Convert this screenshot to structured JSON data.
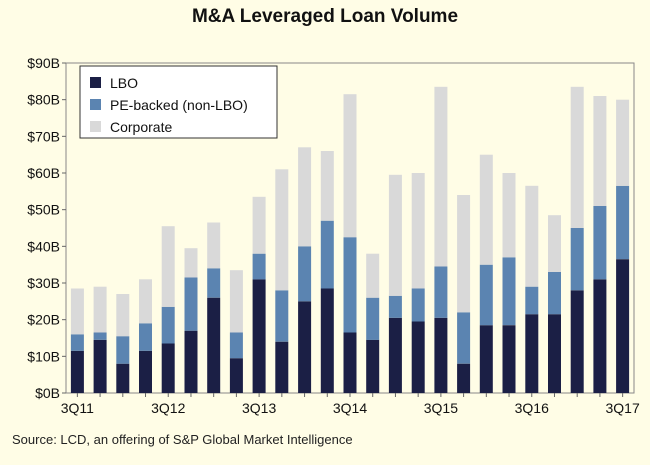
{
  "chart_data": {
    "type": "bar",
    "stacked": true,
    "title": "M&A Leveraged Loan Volume",
    "categories": [
      "3Q11",
      "4Q11",
      "1Q12",
      "2Q12",
      "3Q12",
      "4Q12",
      "1Q13",
      "2Q13",
      "3Q13",
      "4Q13",
      "1Q14",
      "2Q14",
      "3Q14",
      "4Q14",
      "1Q15",
      "2Q15",
      "3Q15",
      "4Q15",
      "1Q16",
      "2Q16",
      "3Q16",
      "4Q16",
      "1Q17",
      "2Q17",
      "3Q17"
    ],
    "x_tick_labels": [
      "3Q11",
      "3Q12",
      "3Q13",
      "3Q14",
      "3Q15",
      "3Q16",
      "3Q17"
    ],
    "y_tick_labels": [
      "$0B",
      "$10B",
      "$20B",
      "$30B",
      "$40B",
      "$50B",
      "$60B",
      "$70B",
      "$80B",
      "$90B"
    ],
    "ylim": [
      0,
      90
    ],
    "series": [
      {
        "name": "LBO",
        "color": "#1b1f45",
        "values": [
          11.5,
          14.5,
          8,
          11.5,
          13.5,
          17,
          26,
          9.5,
          31,
          14,
          25,
          28.5,
          16.5,
          14.5,
          20.5,
          19.5,
          20.5,
          8,
          18.5,
          18.5,
          21.5,
          21.5,
          28,
          31,
          36.5
        ]
      },
      {
        "name": "PE-backed (non-LBO)",
        "color": "#5b84b1",
        "values": [
          4.5,
          2,
          7.5,
          7.5,
          10,
          14.5,
          8,
          7,
          7,
          14,
          15,
          18.5,
          26,
          11.5,
          6,
          9,
          14,
          14,
          16.5,
          18.5,
          7.5,
          11.5,
          17,
          20,
          20
        ]
      },
      {
        "name": "Corporate",
        "color": "#d9d9d9",
        "values": [
          12.5,
          12.5,
          11.5,
          12,
          22,
          8,
          12.5,
          17,
          15.5,
          33,
          27,
          19,
          39,
          12,
          33,
          31.5,
          49,
          32,
          30,
          23,
          27.5,
          15.5,
          38.5,
          30,
          23.5
        ]
      }
    ],
    "legend_position": "top-left",
    "grid": false,
    "source": "Source: LCD, an offering of S&P Global Market Intelligence"
  }
}
